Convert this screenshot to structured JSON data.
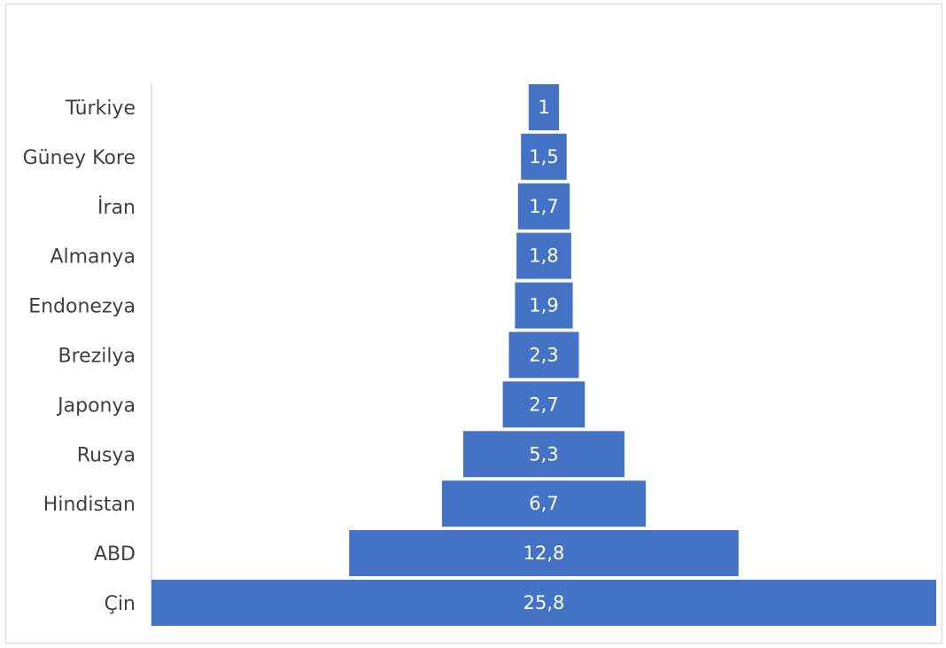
{
  "chart_data": {
    "type": "bar",
    "orientation": "horizontal",
    "layout": "funnel",
    "categories": [
      "Türkiye",
      "Güney Kore",
      "İran",
      "Almanya",
      "Endonezya",
      "Brezilya",
      "Japonya",
      "Rusya",
      "Hindistan",
      "ABD",
      "Çin"
    ],
    "values": [
      1,
      1.5,
      1.7,
      1.8,
      1.9,
      2.3,
      2.7,
      5.3,
      6.7,
      12.8,
      25.8
    ],
    "value_labels": [
      "1",
      "1,5",
      "1,7",
      "1,8",
      "1,9",
      "2,3",
      "2,7",
      "5,3",
      "6,7",
      "12,8",
      "25,8"
    ],
    "title": "",
    "xlabel": "",
    "ylabel": "",
    "grid": false,
    "legend": "none",
    "bar_color": "#4472C4",
    "label_color": "#FFFFFF",
    "axis_text_color": "#404040"
  }
}
